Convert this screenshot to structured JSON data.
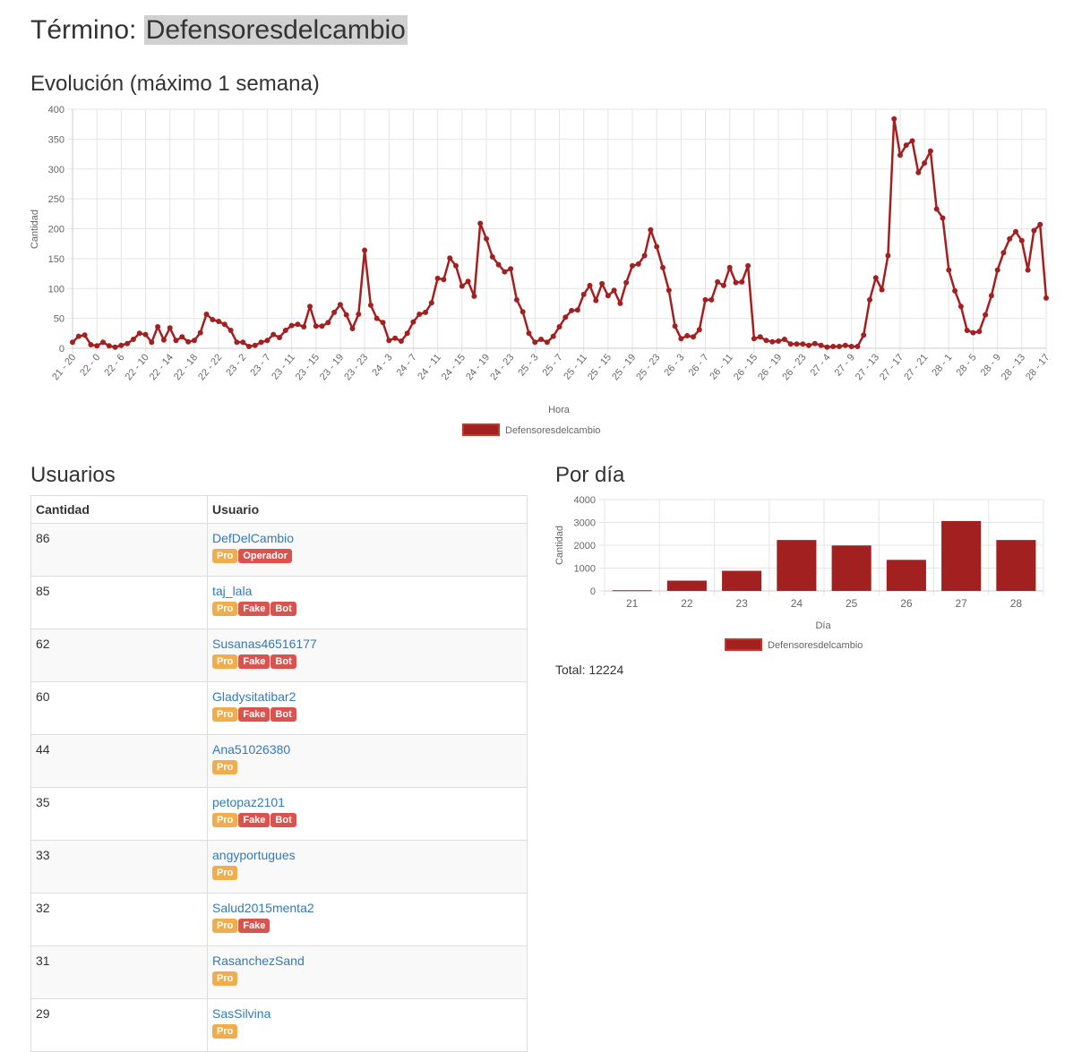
{
  "header": {
    "label": "Término:",
    "term": "Defensoresdelcambio"
  },
  "evolution": {
    "title": "Evolución (máximo 1 semana)",
    "chart_data": {
      "type": "line",
      "xlabel": "Hora",
      "ylabel": "Cantidad",
      "ylim": [
        0,
        400
      ],
      "yticks": [
        0,
        50,
        100,
        150,
        200,
        250,
        300,
        350,
        400
      ],
      "grid": true,
      "legend": "bottom",
      "color": "#a32020",
      "tick_labels": [
        "21 - 20",
        "22 - 0",
        "22 - 6",
        "22 - 10",
        "22 - 14",
        "22 - 18",
        "22 - 22",
        "23 - 2",
        "23 - 7",
        "23 - 11",
        "23 - 15",
        "23 - 19",
        "23 - 23",
        "24 - 3",
        "24 - 7",
        "24 - 11",
        "24 - 15",
        "24 - 19",
        "24 - 23",
        "25 - 3",
        "25 - 7",
        "25 - 11",
        "25 - 15",
        "25 - 19",
        "25 - 23",
        "26 - 3",
        "26 - 7",
        "26 - 11",
        "26 - 15",
        "26 - 19",
        "26 - 23",
        "27 - 4",
        "27 - 9",
        "27 - 13",
        "27 - 17",
        "27 - 21",
        "28 - 1",
        "28 - 5",
        "28 - 9",
        "28 - 13",
        "28 - 17"
      ],
      "series": [
        {
          "name": "Defensoresdelcambio",
          "values": [
            10,
            20,
            22,
            6,
            4,
            10,
            4,
            2,
            5,
            8,
            15,
            25,
            23,
            10,
            36,
            14,
            34,
            13,
            19,
            11,
            13,
            26,
            57,
            48,
            45,
            40,
            30,
            10,
            10,
            3,
            5,
            10,
            13,
            23,
            18,
            30,
            38,
            40,
            36,
            70,
            37,
            37,
            43,
            60,
            73,
            56,
            33,
            57,
            164,
            72,
            50,
            43,
            13,
            17,
            12,
            25,
            44,
            57,
            60,
            76,
            117,
            115,
            151,
            138,
            104,
            112,
            87,
            209,
            183,
            153,
            140,
            128,
            133,
            81,
            61,
            25,
            10,
            15,
            10,
            20,
            36,
            52,
            63,
            64,
            90,
            105,
            80,
            108,
            88,
            97,
            75,
            110,
            138,
            141,
            155,
            198,
            170,
            135,
            97,
            37,
            16,
            21,
            19,
            31,
            81,
            81,
            111,
            105,
            135,
            110,
            111,
            138,
            16,
            19,
            13,
            11,
            12,
            15,
            7,
            7,
            7,
            5,
            8,
            5,
            2,
            3,
            3,
            5,
            3,
            3,
            22,
            81,
            118,
            98,
            155,
            384,
            323,
            340,
            347,
            294,
            310,
            330,
            233,
            218,
            131,
            96,
            70,
            30,
            26,
            28,
            56,
            88,
            131,
            160,
            183,
            195,
            180,
            131,
            197,
            207,
            84
          ]
        }
      ]
    }
  },
  "users": {
    "title": "Usuarios",
    "columns": [
      "Cantidad",
      "Usuario"
    ],
    "rows": [
      {
        "count": "86",
        "name": "DefDelCambio",
        "badges": [
          "Pro",
          "Operador"
        ]
      },
      {
        "count": "85",
        "name": "taj_lala",
        "badges": [
          "Pro",
          "Fake",
          "Bot"
        ]
      },
      {
        "count": "62",
        "name": "Susanas46516177",
        "badges": [
          "Pro",
          "Fake",
          "Bot"
        ]
      },
      {
        "count": "60",
        "name": "Gladysitatibar2",
        "badges": [
          "Pro",
          "Fake",
          "Bot"
        ]
      },
      {
        "count": "44",
        "name": "Ana51026380",
        "badges": [
          "Pro"
        ]
      },
      {
        "count": "35",
        "name": "petopaz2101",
        "badges": [
          "Pro",
          "Fake",
          "Bot"
        ]
      },
      {
        "count": "33",
        "name": "angyportugues",
        "badges": [
          "Pro"
        ]
      },
      {
        "count": "32",
        "name": "Salud2015menta2",
        "badges": [
          "Pro",
          "Fake"
        ]
      },
      {
        "count": "31",
        "name": "RasanchezSand",
        "badges": [
          "Pro"
        ]
      },
      {
        "count": "29",
        "name": "SasSilvina",
        "badges": [
          "Pro"
        ]
      }
    ],
    "badge_colors": {
      "Pro": "#f0ad4e",
      "Operador": "#d9534f",
      "Fake": "#d9534f",
      "Bot": "#d9534f"
    }
  },
  "per_day": {
    "title": "Por día",
    "chart_data": {
      "type": "bar",
      "categories": [
        "21",
        "22",
        "23",
        "24",
        "25",
        "26",
        "27",
        "28"
      ],
      "series": [
        {
          "name": "Defensoresdelcambio",
          "values": [
            30,
            450,
            880,
            2230,
            1990,
            1360,
            3060,
            2230
          ]
        }
      ],
      "xlabel": "Día",
      "ylabel": "Cantidad",
      "ylim": [
        0,
        4000
      ],
      "yticks": [
        0,
        1000,
        2000,
        3000,
        4000
      ],
      "grid": true,
      "legend": "bottom",
      "color": "#a32020"
    },
    "total_label": "Total:",
    "total_value": "12224"
  }
}
